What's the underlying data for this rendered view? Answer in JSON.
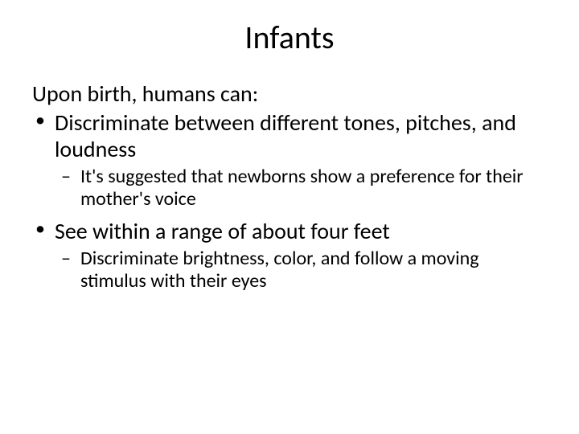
{
  "slide": {
    "title": "Infants",
    "intro": "Upon birth, humans can:",
    "bullets": [
      {
        "text": "Discriminate between different tones, pitches, and loudness",
        "sub": [
          "It's suggested that newborns show a preference for their mother's voice"
        ]
      },
      {
        "text": "See within a range of about four feet",
        "sub": [
          "Discriminate brightness, color, and follow a moving stimulus with their eyes"
        ]
      }
    ]
  },
  "style": {
    "background_color": "#ffffff",
    "text_color": "#000000",
    "title_fontsize": 40,
    "body_fontsize": 28,
    "sub_fontsize": 24,
    "font_family": "Calibri"
  }
}
